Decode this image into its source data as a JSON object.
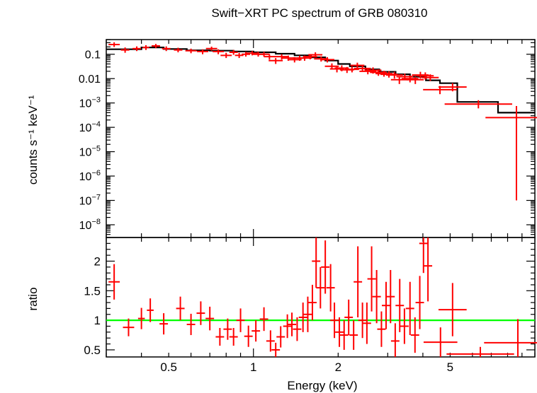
{
  "chart_data": [
    {
      "type": "scatter",
      "panel": "spectrum",
      "title": "Swift−XRT PC spectrum of GRB 080310",
      "ylabel": "counts s⁻¹ keV⁻¹",
      "xlabel": "",
      "x_scale": "log",
      "y_scale": "log",
      "xlim": [
        0.3,
        10
      ],
      "ylim": [
        3e-09,
        0.4
      ],
      "x_ticks": [
        {
          "value": 0.5,
          "label": "0.5"
        },
        {
          "value": 1,
          "label": "1"
        },
        {
          "value": 2,
          "label": "2"
        },
        {
          "value": 5,
          "label": "5"
        }
      ],
      "y_ticks": [
        {
          "value": 0.1,
          "base": "0.1",
          "exp": ""
        },
        {
          "value": 0.01,
          "base": "0.01",
          "exp": ""
        },
        {
          "value": 0.001,
          "base": "10",
          "exp": "−3"
        },
        {
          "value": 0.0001,
          "base": "10",
          "exp": "−4"
        },
        {
          "value": 1e-05,
          "base": "10",
          "exp": "−5"
        },
        {
          "value": 1e-06,
          "base": "10",
          "exp": "−6"
        },
        {
          "value": 1e-07,
          "base": "10",
          "exp": "−7"
        },
        {
          "value": 1e-08,
          "base": "10",
          "exp": "−8"
        }
      ],
      "series": [
        {
          "kind": "data",
          "color": "#ff0000",
          "points": [
            [
              0.32,
              0.25,
              0.02,
              0.06,
              0.05
            ],
            [
              0.35,
              0.15,
              0.015,
              0.04,
              0.035
            ],
            [
              0.385,
              0.17,
              0.015,
              0.04,
              0.035
            ],
            [
              0.415,
              0.19,
              0.012,
              0.045,
              0.04
            ],
            [
              0.45,
              0.22,
              0.015,
              0.045,
              0.04
            ],
            [
              0.49,
              0.17,
              0.015,
              0.04,
              0.035
            ],
            [
              0.54,
              0.15,
              0.015,
              0.035,
              0.03
            ],
            [
              0.6,
              0.14,
              0.02,
              0.03,
              0.03
            ],
            [
              0.66,
              0.13,
              0.02,
              0.03,
              0.03
            ],
            [
              0.71,
              0.17,
              0.02,
              0.035,
              0.03
            ],
            [
              0.75,
              0.13,
              0.02,
              0.03,
              0.03
            ],
            [
              0.8,
              0.09,
              0.02,
              0.025,
              0.02
            ],
            [
              0.85,
              0.12,
              0.015,
              0.03,
              0.025
            ],
            [
              0.89,
              0.09,
              0.015,
              0.025,
              0.02
            ],
            [
              0.94,
              0.1,
              0.015,
              0.025,
              0.02
            ],
            [
              0.99,
              0.11,
              0.02,
              0.025,
              0.02
            ],
            [
              1.04,
              0.1,
              0.02,
              0.025,
              0.02
            ],
            [
              1.09,
              0.1,
              0.02,
              0.025,
              0.02
            ],
            [
              1.14,
              0.08,
              0.02,
              0.02,
              0.02
            ],
            [
              1.2,
              0.055,
              0.025,
              0.015,
              0.015
            ],
            [
              1.26,
              0.08,
              0.025,
              0.02,
              0.02
            ],
            [
              1.33,
              0.07,
              0.025,
              0.018,
              0.016
            ],
            [
              1.4,
              0.06,
              0.025,
              0.016,
              0.014
            ],
            [
              1.46,
              0.07,
              0.025,
              0.018,
              0.016
            ],
            [
              1.52,
              0.07,
              0.025,
              0.018,
              0.016
            ],
            [
              1.59,
              0.08,
              0.025,
              0.02,
              0.018
            ],
            [
              1.66,
              0.095,
              0.025,
              0.025,
              0.02
            ],
            [
              1.74,
              0.065,
              0.025,
              0.017,
              0.015
            ],
            [
              1.83,
              0.06,
              0.025,
              0.016,
              0.014
            ],
            [
              1.9,
              0.032,
              0.025,
              0.01,
              0.008
            ],
            [
              1.98,
              0.025,
              0.025,
              0.008,
              0.007
            ],
            [
              2.06,
              0.027,
              0.025,
              0.008,
              0.007
            ],
            [
              2.15,
              0.023,
              0.025,
              0.007,
              0.006
            ],
            [
              2.24,
              0.024,
              0.025,
              0.007,
              0.006
            ],
            [
              2.34,
              0.035,
              0.025,
              0.01,
              0.009
            ],
            [
              2.44,
              0.026,
              0.03,
              0.008,
              0.007
            ],
            [
              2.55,
              0.02,
              0.03,
              0.006,
              0.005
            ],
            [
              2.66,
              0.022,
              0.03,
              0.007,
              0.006
            ],
            [
              2.78,
              0.018,
              0.03,
              0.006,
              0.005
            ],
            [
              2.91,
              0.016,
              0.03,
              0.005,
              0.004
            ],
            [
              3.03,
              0.015,
              0.03,
              0.005,
              0.004
            ],
            [
              3.17,
              0.014,
              0.03,
              0.005,
              0.004
            ],
            [
              3.3,
              0.009,
              0.03,
              0.003,
              0.003
            ],
            [
              3.45,
              0.012,
              0.03,
              0.004,
              0.003
            ],
            [
              3.6,
              0.01,
              0.03,
              0.0035,
              0.003
            ],
            [
              3.76,
              0.009,
              0.03,
              0.003,
              0.003
            ],
            [
              3.92,
              0.014,
              0.03,
              0.005,
              0.004
            ],
            [
              4.08,
              0.013,
              0.03,
              0.005,
              0.004
            ],
            [
              4.25,
              0.011,
              0.03,
              0.004,
              0.003
            ],
            [
              4.6,
              0.0035,
              0.06,
              0.0015,
              0.0012
            ],
            [
              5.1,
              0.0045,
              0.05,
              0.002,
              0.0015
            ],
            [
              6.3,
              0.0009,
              0.12,
              0.0004,
              0.0003
            ],
            [
              8.6,
              0.00025,
              0.11,
              0.0005,
              0.0002499
            ]
          ],
          "point_format": "[x, y, x_halfwidth_dex, y_err_up, y_err_down]"
        },
        {
          "kind": "model",
          "color": "#000000",
          "steps": [
            [
              0.3,
              0.16
            ],
            [
              0.4,
              0.19
            ],
            [
              0.48,
              0.165
            ],
            [
              0.58,
              0.145
            ],
            [
              0.7,
              0.14
            ],
            [
              0.85,
              0.13
            ],
            [
              1.0,
              0.12
            ],
            [
              1.2,
              0.105
            ],
            [
              1.4,
              0.09
            ],
            [
              1.6,
              0.075
            ],
            [
              1.8,
              0.055
            ],
            [
              2.0,
              0.04
            ],
            [
              2.2,
              0.032
            ],
            [
              2.5,
              0.024
            ],
            [
              2.8,
              0.019
            ],
            [
              3.2,
              0.015
            ],
            [
              3.6,
              0.012
            ],
            [
              4.1,
              0.0085
            ],
            [
              4.6,
              0.0065
            ],
            [
              5.3,
              0.0011
            ],
            [
              7.4,
              0.0004
            ],
            [
              10,
              0.0004
            ]
          ]
        }
      ]
    },
    {
      "type": "scatter",
      "panel": "ratio",
      "xlabel": "Energy (keV)",
      "ylabel": "ratio",
      "x_scale": "log",
      "xlim": [
        0.3,
        10
      ],
      "ylim": [
        0.38,
        2.4
      ],
      "y_ticks": [
        {
          "value": 0.5,
          "label": "0.5"
        },
        {
          "value": 1,
          "label": "1"
        },
        {
          "value": 1.5,
          "label": "1.5"
        },
        {
          "value": 2,
          "label": "2"
        }
      ],
      "reference_line": {
        "y": 1,
        "color": "#00ff00"
      },
      "series": [
        {
          "kind": "ratio",
          "color": "#ff0000",
          "points": [
            [
              0.32,
              1.65,
              0.02,
              0.3,
              0.3
            ],
            [
              0.36,
              0.88,
              0.02,
              0.15,
              0.15
            ],
            [
              0.4,
              1.03,
              0.012,
              0.18,
              0.18
            ],
            [
              0.43,
              1.17,
              0.012,
              0.2,
              0.2
            ],
            [
              0.48,
              0.94,
              0.015,
              0.18,
              0.18
            ],
            [
              0.55,
              1.2,
              0.015,
              0.2,
              0.2
            ],
            [
              0.6,
              0.93,
              0.015,
              0.18,
              0.18
            ],
            [
              0.65,
              1.12,
              0.015,
              0.2,
              0.2
            ],
            [
              0.7,
              1.03,
              0.015,
              0.2,
              0.2
            ],
            [
              0.76,
              0.72,
              0.015,
              0.15,
              0.15
            ],
            [
              0.81,
              0.85,
              0.015,
              0.18,
              0.18
            ],
            [
              0.85,
              0.72,
              0.015,
              0.15,
              0.15
            ],
            [
              0.9,
              1.0,
              0.015,
              0.2,
              0.2
            ],
            [
              0.96,
              0.73,
              0.015,
              0.18,
              0.18
            ],
            [
              1.02,
              0.82,
              0.015,
              0.18,
              0.18
            ],
            [
              1.09,
              1.02,
              0.015,
              0.2,
              0.2
            ],
            [
              1.15,
              0.65,
              0.015,
              0.18,
              0.18
            ],
            [
              1.2,
              0.5,
              0.015,
              0.12,
              0.12
            ],
            [
              1.25,
              0.72,
              0.015,
              0.18,
              0.18
            ],
            [
              1.32,
              0.9,
              0.015,
              0.2,
              0.2
            ],
            [
              1.37,
              0.93,
              0.015,
              0.2,
              0.2
            ],
            [
              1.43,
              0.85,
              0.015,
              0.2,
              0.2
            ],
            [
              1.5,
              1.05,
              0.015,
              0.25,
              0.25
            ],
            [
              1.56,
              1.1,
              0.015,
              0.3,
              0.3
            ],
            [
              1.62,
              1.3,
              0.015,
              0.3,
              0.3
            ],
            [
              1.67,
              2.0,
              0.015,
              0.45,
              0.45
            ],
            [
              1.73,
              1.55,
              0.015,
              0.35,
              0.35
            ],
            [
              1.8,
              1.9,
              0.015,
              0.45,
              0.45
            ],
            [
              1.88,
              1.55,
              0.015,
              0.4,
              0.4
            ],
            [
              1.94,
              1.0,
              0.015,
              0.3,
              0.3
            ],
            [
              2.02,
              0.8,
              0.015,
              0.25,
              0.25
            ],
            [
              2.1,
              0.75,
              0.015,
              0.25,
              0.25
            ],
            [
              2.18,
              1.05,
              0.015,
              0.3,
              0.3
            ],
            [
              2.27,
              0.75,
              0.015,
              0.25,
              0.25
            ],
            [
              2.35,
              1.65,
              0.015,
              0.6,
              0.6
            ],
            [
              2.44,
              1.0,
              0.015,
              0.3,
              0.3
            ],
            [
              2.53,
              0.95,
              0.015,
              0.35,
              0.35
            ],
            [
              2.63,
              1.7,
              0.015,
              0.55,
              0.55
            ],
            [
              2.74,
              1.4,
              0.015,
              0.45,
              0.45
            ],
            [
              2.85,
              0.85,
              0.015,
              0.3,
              0.3
            ],
            [
              2.96,
              1.25,
              0.015,
              0.4,
              0.4
            ],
            [
              3.07,
              1.4,
              0.015,
              0.45,
              0.45
            ],
            [
              3.19,
              0.65,
              0.015,
              0.3,
              0.3
            ],
            [
              3.31,
              1.25,
              0.015,
              0.45,
              0.45
            ],
            [
              3.44,
              0.9,
              0.015,
              0.3,
              0.3
            ],
            [
              3.6,
              1.2,
              0.015,
              0.45,
              0.45
            ],
            [
              3.75,
              0.75,
              0.015,
              0.3,
              0.3
            ],
            [
              3.9,
              1.3,
              0.015,
              0.45,
              0.45
            ],
            [
              4.02,
              2.3,
              0.015,
              0.5,
              0.5
            ],
            [
              4.17,
              1.92,
              0.015,
              0.6,
              0.6
            ],
            [
              4.62,
              0.63,
              0.06,
              0.25,
              0.25
            ],
            [
              5.1,
              1.18,
              0.05,
              0.45,
              0.45
            ],
            [
              6.4,
              0.43,
              0.12,
              0.12,
              0.12
            ],
            [
              8.7,
              0.62,
              0.12,
              0.4,
              0.4
            ]
          ],
          "point_format": "[x, ratio, x_halfwidth_dex, err_up, err_down]"
        }
      ]
    }
  ]
}
